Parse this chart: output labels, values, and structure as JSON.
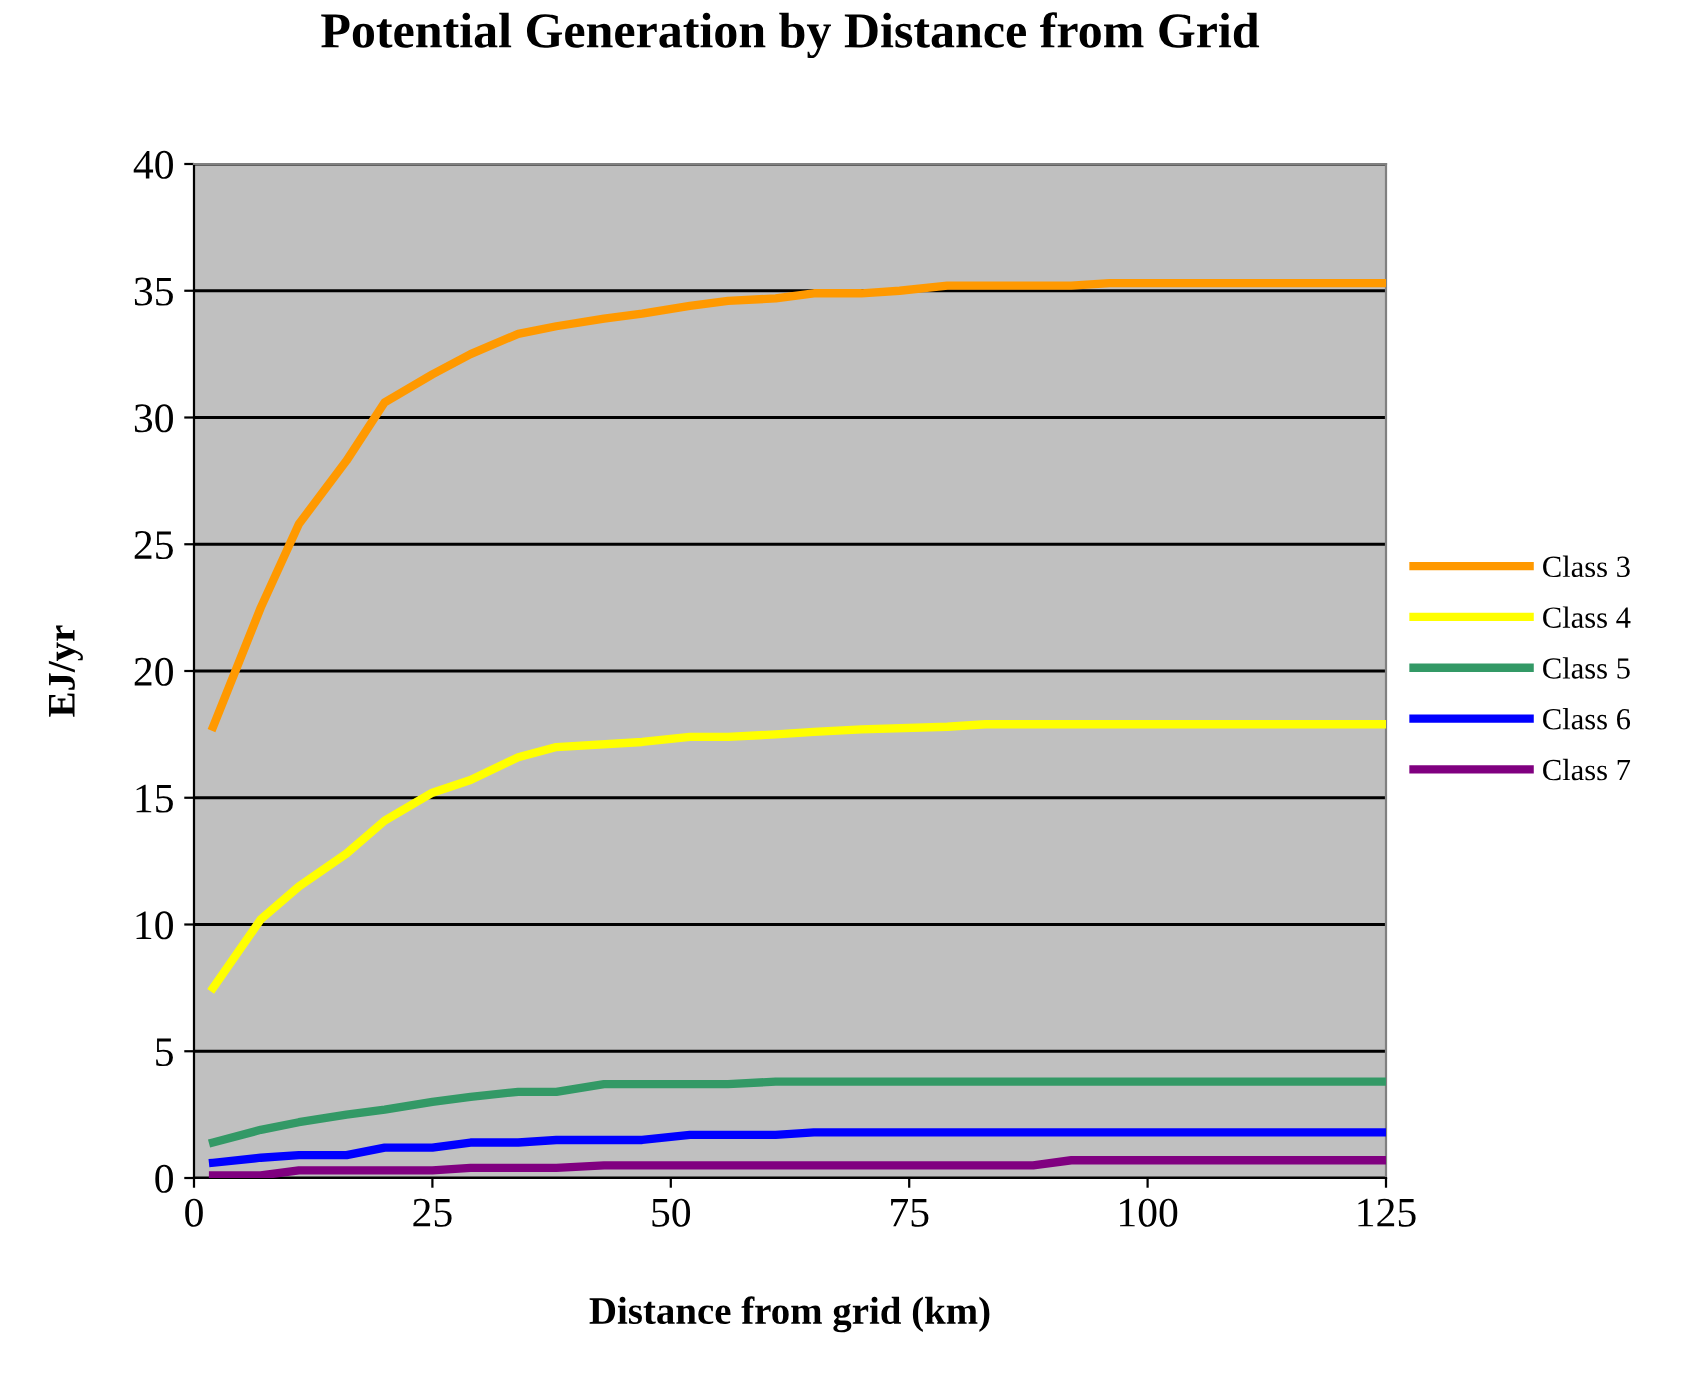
{
  "chart_data": {
    "type": "line",
    "title": "Potential Generation by Distance from Grid",
    "xlabel": "Distance from grid (km)",
    "ylabel": "EJ/yr",
    "xlim": [
      0,
      125
    ],
    "xticks": [
      0,
      25,
      50,
      75,
      100,
      125
    ],
    "ylim": [
      0,
      40
    ],
    "yticks": [
      0,
      5,
      10,
      15,
      20,
      25,
      30,
      35,
      40
    ],
    "grid": "y",
    "legend": "right",
    "marker": "none",
    "line_style": "solid",
    "series": [
      {
        "name": "Class 3",
        "color": "#ff9900",
        "x": [
          2,
          7,
          11,
          16,
          20,
          25,
          29,
          34,
          38,
          43,
          47,
          52,
          56,
          61,
          65,
          70,
          74,
          79,
          83,
          92,
          96,
          125
        ],
        "values": [
          17.8,
          22.5,
          25.8,
          28.3,
          30.6,
          31.7,
          32.5,
          33.3,
          33.6,
          33.9,
          34.1,
          34.4,
          34.6,
          34.7,
          34.9,
          34.9,
          35.0,
          35.2,
          35.2,
          35.2,
          35.3,
          35.3
        ]
      },
      {
        "name": "Class 4",
        "color": "#ffff00",
        "x": [
          2,
          7,
          11,
          16,
          20,
          25,
          29,
          34,
          38,
          47,
          52,
          56,
          61,
          65,
          70,
          79,
          83,
          125
        ],
        "values": [
          7.5,
          10.2,
          11.5,
          12.8,
          14.1,
          15.2,
          15.7,
          16.6,
          17.0,
          17.2,
          17.4,
          17.4,
          17.5,
          17.6,
          17.7,
          17.8,
          17.9,
          17.9
        ]
      },
      {
        "name": "Class 5",
        "color": "#339966",
        "x": [
          2,
          7,
          11,
          16,
          20,
          25,
          29,
          34,
          38,
          43,
          56,
          61,
          125
        ],
        "values": [
          1.4,
          1.9,
          2.2,
          2.5,
          2.7,
          3.0,
          3.2,
          3.4,
          3.4,
          3.7,
          3.7,
          3.8,
          3.8
        ]
      },
      {
        "name": "Class 6",
        "color": "#0000ff",
        "x": [
          2,
          7,
          11,
          16,
          20,
          25,
          29,
          34,
          38,
          47,
          52,
          61,
          65,
          125
        ],
        "values": [
          0.6,
          0.8,
          0.9,
          0.9,
          1.2,
          1.2,
          1.4,
          1.4,
          1.5,
          1.5,
          1.7,
          1.7,
          1.8,
          1.8
        ]
      },
      {
        "name": "Class 7",
        "color": "#800080",
        "x": [
          2,
          7,
          11,
          25,
          29,
          38,
          43,
          88,
          92,
          125
        ],
        "values": [
          0.1,
          0.1,
          0.3,
          0.3,
          0.4,
          0.4,
          0.5,
          0.5,
          0.7,
          0.7
        ]
      }
    ]
  }
}
